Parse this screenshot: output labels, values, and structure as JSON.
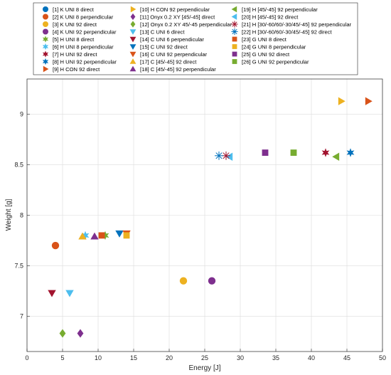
{
  "chart_data": {
    "type": "scatter",
    "title": "",
    "xlabel": "Energy [J]",
    "ylabel": "Weight [g]",
    "xlim": [
      0,
      50
    ],
    "ylim": [
      6.65,
      9.35
    ],
    "xticks": [
      0,
      5,
      10,
      15,
      20,
      25,
      30,
      35,
      40,
      45,
      50
    ],
    "yticks": [
      7,
      7.5,
      8,
      8.5,
      9
    ],
    "grid": true,
    "legend_position": "top",
    "series": [
      {
        "name": "[1] K UNI 8 direct",
        "marker": "circle",
        "color": "#0072BD",
        "points": []
      },
      {
        "name": "[2] K UNI 8 perpendicular",
        "marker": "circle",
        "color": "#D95319",
        "points": [
          [
            4.0,
            7.7
          ]
        ]
      },
      {
        "name": "[3] K UNI 92 direct",
        "marker": "circle",
        "color": "#EDB120",
        "points": [
          [
            22.0,
            7.35
          ]
        ]
      },
      {
        "name": "[4] K UNI 92 perpendicular",
        "marker": "circle",
        "color": "#7E2F8E",
        "points": [
          [
            26.0,
            7.35
          ]
        ]
      },
      {
        "name": "[5] H UNI 8 direct",
        "marker": "hexagram",
        "color": "#77AC30",
        "points": [
          [
            11.0,
            7.8
          ]
        ]
      },
      {
        "name": "[6] H UNI 8 perpendicular",
        "marker": "hexagram",
        "color": "#4DBEEE",
        "points": [
          [
            8.2,
            7.8
          ]
        ]
      },
      {
        "name": "[7] H UNI 92 direct",
        "marker": "hexagram",
        "color": "#A2142F",
        "points": [
          [
            42.0,
            8.62
          ]
        ]
      },
      {
        "name": "[8] H UNI 92 perpendicular",
        "marker": "hexagram",
        "color": "#0072BD",
        "points": [
          [
            45.5,
            8.62
          ]
        ]
      },
      {
        "name": "[9] H CON 92 direct",
        "marker": "triangle-right",
        "color": "#D95319",
        "points": [
          [
            48.0,
            9.13
          ]
        ]
      },
      {
        "name": "[10] H CON 92 perpendicular",
        "marker": "triangle-right",
        "color": "#EDB120",
        "points": [
          [
            44.2,
            9.13
          ]
        ]
      },
      {
        "name": "[11] Onyx 0.2 XY [45/-45] direct",
        "marker": "diamond",
        "color": "#7E2F8E",
        "points": [
          [
            7.5,
            6.83
          ]
        ]
      },
      {
        "name": "[12] Onyx 0.2 XY 45/-45 perpendicular",
        "marker": "diamond",
        "color": "#77AC30",
        "points": [
          [
            5.0,
            6.83
          ]
        ]
      },
      {
        "name": "[13] C UNI 6 direct",
        "marker": "triangle-down",
        "color": "#4DBEEE",
        "points": [
          [
            6.0,
            7.23
          ]
        ]
      },
      {
        "name": "[14] C UNI 6 perpendicular",
        "marker": "triangle-down",
        "color": "#A2142F",
        "points": [
          [
            3.5,
            7.23
          ]
        ]
      },
      {
        "name": "[15] C UNI 92 direct",
        "marker": "triangle-down",
        "color": "#0072BD",
        "points": [
          [
            13.0,
            7.82
          ]
        ]
      },
      {
        "name": "[16] C UNI 92 perpendicular",
        "marker": "triangle-down",
        "color": "#D95319",
        "points": [
          [
            14.0,
            7.82
          ]
        ]
      },
      {
        "name": "[17] C [45/-45] 92 direct",
        "marker": "triangle-up",
        "color": "#EDB120",
        "points": [
          [
            7.8,
            7.79
          ]
        ]
      },
      {
        "name": "[18] C [45/-45] 92 perpendicular",
        "marker": "triangle-up",
        "color": "#7E2F8E",
        "points": [
          [
            9.5,
            7.79
          ]
        ]
      },
      {
        "name": "[19] H [45/-45] 92 perpendicular",
        "marker": "triangle-left",
        "color": "#77AC30",
        "points": [
          [
            43.5,
            8.58
          ]
        ]
      },
      {
        "name": "[20] H [45/-45] 92 direct",
        "marker": "triangle-left",
        "color": "#4DBEEE",
        "points": [
          [
            28.5,
            8.58
          ]
        ]
      },
      {
        "name": "[21] H [30/-60/60/-30/45/-45] 92 perpendicular",
        "marker": "asterisk",
        "color": "#A2142F",
        "points": [
          [
            28.0,
            8.59
          ]
        ]
      },
      {
        "name": "[22] H [30/-60/60/-30/45/-45] 92 direct",
        "marker": "asterisk",
        "color": "#0072BD",
        "points": [
          [
            27.0,
            8.59
          ]
        ]
      },
      {
        "name": "[23] G UNI 8 direct",
        "marker": "square",
        "color": "#D95319",
        "points": [
          [
            10.5,
            7.8
          ]
        ]
      },
      {
        "name": "[24] G UNI 8 perpendicular",
        "marker": "square",
        "color": "#EDB120",
        "points": [
          [
            14.0,
            7.8
          ]
        ]
      },
      {
        "name": "[25] G UNI 92 direct",
        "marker": "square",
        "color": "#7E2F8E",
        "points": [
          [
            33.5,
            8.62
          ]
        ]
      },
      {
        "name": "[26] G UNI 92 perpendicular",
        "marker": "square",
        "color": "#77AC30",
        "points": [
          [
            37.5,
            8.62
          ]
        ]
      }
    ]
  }
}
